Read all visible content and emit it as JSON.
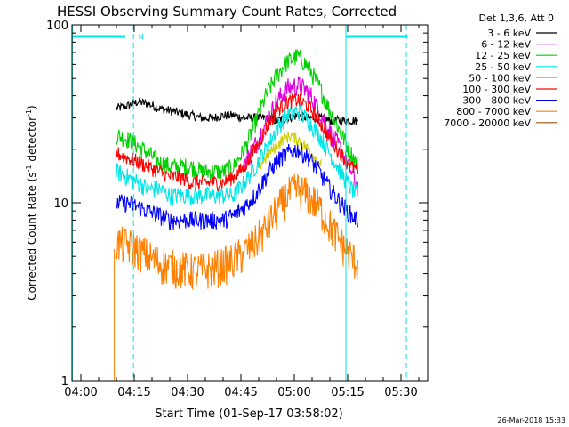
{
  "chart_data": {
    "type": "line",
    "title": "HESSI Observing Summary Count Rates, Corrected",
    "xlabel": "Start Time (01-Sep-17 03:58:02)",
    "ylabel": "Corrected Count Rate (s⁻¹ detector⁻¹)",
    "ylabel_main": "Corrected Count Rate (s",
    "ylabel_mid": " detector",
    "ylabel_end": ")",
    "ylabel_sup": "-1",
    "yscale": "log",
    "ylim": [
      1,
      100
    ],
    "xlim_minutes": [
      237.5,
      337.5
    ],
    "x_tick_labels": [
      "04:00",
      "04:15",
      "04:30",
      "04:45",
      "05:00",
      "05:15",
      "05:30"
    ],
    "x_tick_minutes": [
      240,
      255,
      270,
      285,
      300,
      315,
      330
    ],
    "y_tick_labels": [
      "1",
      "10",
      "100"
    ],
    "y_tick_values": [
      1,
      10,
      100
    ],
    "legend_title": "Det 1,3,6, Att 0",
    "legend_placement": "right, outside plot",
    "timestamp": "26-Mar-2018 15:33",
    "flag_label": "N",
    "flag_color": "#00e5e5",
    "series": [
      {
        "name": "3 - 6 keV",
        "color": "#000000",
        "x": [
          250,
          253,
          256,
          259,
          262,
          265,
          268,
          271,
          274,
          277,
          280,
          283,
          286,
          289,
          292,
          295,
          298,
          301,
          304,
          307,
          310,
          313,
          316,
          318
        ],
        "values": [
          34,
          35,
          37,
          36,
          34,
          33,
          32,
          31,
          30,
          30,
          31,
          31,
          30,
          30,
          30,
          29,
          30,
          31,
          30,
          30,
          29,
          29,
          29,
          29
        ]
      },
      {
        "name": "6 - 12 keV",
        "color": "#e000e0",
        "x": [
          286,
          289,
          292,
          295,
          298,
          301,
          304,
          307,
          310,
          313,
          316,
          318
        ],
        "values": [
          17,
          21,
          28,
          37,
          44,
          46,
          42,
          33,
          25,
          20,
          15,
          12
        ]
      },
      {
        "name": "12 - 25 keV",
        "color": "#00d000",
        "x": [
          250,
          253,
          256,
          259,
          262,
          265,
          268,
          271,
          274,
          277,
          280,
          283,
          286,
          289,
          292,
          295,
          298,
          301,
          304,
          307,
          310,
          313,
          316,
          318
        ],
        "values": [
          24,
          23,
          21,
          19,
          17,
          16,
          16,
          16,
          15,
          15,
          15,
          16,
          20,
          28,
          40,
          52,
          62,
          67,
          58,
          45,
          33,
          25,
          19,
          16
        ]
      },
      {
        "name": "25 - 50 keV",
        "color": "#00e5e5",
        "x": [
          250,
          253,
          256,
          259,
          262,
          265,
          268,
          271,
          274,
          277,
          280,
          283,
          286,
          289,
          292,
          295,
          298,
          301,
          304,
          307,
          310,
          313,
          316,
          318
        ],
        "values": [
          15,
          14,
          13,
          12,
          12,
          11,
          11,
          11,
          11,
          11,
          11,
          11,
          13,
          16,
          20,
          26,
          31,
          33,
          29,
          24,
          19,
          15,
          12,
          11
        ]
      },
      {
        "name": "50 - 100 keV",
        "color": "#d0d000",
        "x": [
          290,
          293,
          296,
          299,
          302,
          305,
          308
        ],
        "values": [
          16,
          19,
          22,
          24,
          22,
          19,
          16
        ]
      },
      {
        "name": "100 - 300 keV",
        "color": "#ff0000",
        "x": [
          250,
          253,
          256,
          259,
          262,
          265,
          268,
          271,
          274,
          277,
          280,
          283,
          286,
          289,
          292,
          295,
          298,
          301,
          304,
          307,
          310,
          313,
          316,
          318
        ],
        "values": [
          19,
          18,
          17,
          16,
          15,
          14,
          14,
          13,
          13,
          13,
          13,
          14,
          16,
          20,
          26,
          33,
          37,
          38,
          35,
          29,
          23,
          19,
          16,
          15
        ]
      },
      {
        "name": "300 - 800 keV",
        "color": "#0000ff",
        "x": [
          250,
          253,
          256,
          259,
          262,
          265,
          268,
          271,
          274,
          277,
          280,
          283,
          286,
          289,
          292,
          295,
          298,
          301,
          304,
          307,
          310,
          313,
          316,
          318
        ],
        "values": [
          10,
          10,
          9.5,
          9,
          8.5,
          8,
          8,
          8,
          8,
          8,
          8,
          8.5,
          9.5,
          11,
          14,
          17,
          19,
          20,
          18,
          15,
          12,
          10,
          8.5,
          8
        ]
      },
      {
        "name": "800 - 7000 keV",
        "color": "#ff8000",
        "x": [
          250,
          253,
          256,
          259,
          262,
          265,
          268,
          271,
          274,
          277,
          280,
          283,
          286,
          289,
          292,
          295,
          298,
          301,
          304,
          307,
          310,
          313,
          316,
          318
        ],
        "values": [
          6,
          5.8,
          5.5,
          5,
          4.6,
          4.4,
          4.3,
          4.2,
          4.2,
          4.3,
          4.5,
          4.8,
          5.3,
          6,
          7.2,
          9,
          11,
          12,
          11,
          9.5,
          7.5,
          6,
          5,
          4.5
        ]
      },
      {
        "name": "7000 - 20000 keV",
        "color": "#a05000",
        "x": [],
        "values": []
      }
    ]
  }
}
